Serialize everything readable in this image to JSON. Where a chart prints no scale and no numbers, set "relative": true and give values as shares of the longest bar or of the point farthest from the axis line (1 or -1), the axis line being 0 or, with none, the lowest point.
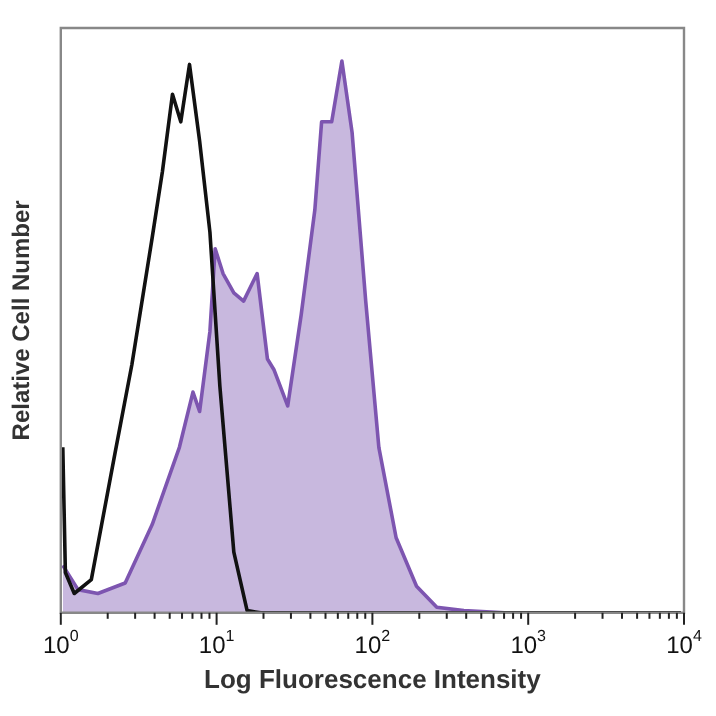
{
  "chart_data": {
    "type": "area",
    "xlabel": "Log Fluorescence Intensity",
    "ylabel": "Relative Cell Number",
    "relative": true,
    "log": "x",
    "grid": false,
    "legend": false,
    "xlim": [
      1,
      10000
    ],
    "xticks": [
      {
        "value": 1,
        "label": "10$^{0}$"
      },
      {
        "value": 2,
        "label": null
      },
      {
        "value": 3,
        "label": null
      },
      {
        "value": 4,
        "label": null
      },
      {
        "value": 5,
        "label": null
      },
      {
        "value": 6,
        "label": null
      },
      {
        "value": 7,
        "label": null
      },
      {
        "value": 8,
        "label": null
      },
      {
        "value": 9,
        "label": null
      },
      {
        "value": 10,
        "label": "10$^{1}$"
      },
      {
        "value": 20,
        "label": null
      },
      {
        "value": 30,
        "label": null
      },
      {
        "value": 40,
        "label": null
      },
      {
        "value": 50,
        "label": null
      },
      {
        "value": 60,
        "label": null
      },
      {
        "value": 70,
        "label": null
      },
      {
        "value": 80,
        "label": null
      },
      {
        "value": 90,
        "label": null
      },
      {
        "value": 100,
        "label": "10$^{2}$"
      },
      {
        "value": 200,
        "label": null
      },
      {
        "value": 300,
        "label": null
      },
      {
        "value": 400,
        "label": null
      },
      {
        "value": 500,
        "label": null
      },
      {
        "value": 600,
        "label": null
      },
      {
        "value": 700,
        "label": null
      },
      {
        "value": 800,
        "label": null
      },
      {
        "value": 900,
        "label": null
      },
      {
        "value": 1000,
        "label": "10$^{3}$"
      },
      {
        "value": 2000,
        "label": null
      },
      {
        "value": 3000,
        "label": null
      },
      {
        "value": 4000,
        "label": null
      },
      {
        "value": 5000,
        "label": null
      },
      {
        "value": 6000,
        "label": null
      },
      {
        "value": 7000,
        "label": null
      },
      {
        "value": 8000,
        "label": null
      },
      {
        "value": 9000,
        "label": null
      },
      {
        "value": 10000,
        "label": "10$^{4}$"
      }
    ],
    "series": [
      {
        "color": "#7d55b0",
        "x": [
          1.03,
          1.29,
          1.73,
          2.59,
          3.86,
          5.77,
          7.05,
          7.78,
          9.06,
          9.79,
          11.0,
          12.9,
          14.9,
          18.2,
          21.2,
          23.4,
          28.6,
          34.9,
          42.7,
          47.2,
          54.8,
          63.7,
          74.1,
          90.6,
          110,
          142,
          192,
          259,
          386,
          705,
          9550
        ],
        "values": [
          0.086,
          0.042,
          0.035,
          0.054,
          0.16,
          0.3,
          0.4,
          0.365,
          0.51,
          0.66,
          0.615,
          0.58,
          0.565,
          0.615,
          0.46,
          0.44,
          0.375,
          0.54,
          0.73,
          0.89,
          0.89,
          1,
          0.87,
          0.565,
          0.3,
          0.136,
          0.048,
          0.01,
          0.004,
          0,
          0
        ]
      },
      {
        "type": "line",
        "color": "#111111",
        "x": [
          1.03,
          1.07,
          1.22,
          1.57,
          2.23,
          2.86,
          3.86,
          4.49,
          5.21,
          5.89,
          6.7,
          7.78,
          9.06,
          10.5,
          12.9,
          15.7,
          19.2,
          9550
        ],
        "values": [
          0.3,
          0.073,
          0.035,
          0.06,
          0.29,
          0.45,
          0.68,
          0.8,
          0.94,
          0.89,
          0.994,
          0.855,
          0.69,
          0.41,
          0.11,
          0.004,
          0,
          0
        ]
      }
    ]
  }
}
